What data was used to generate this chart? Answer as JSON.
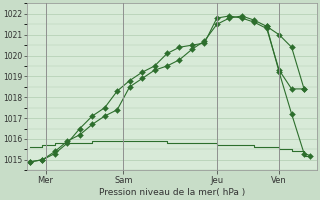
{
  "background_color": "#c8ddc8",
  "plot_bg_color": "#d8ead8",
  "grid_color": "#b0ccb0",
  "line_color": "#2d6e2d",
  "xlabel": "Pression niveau de la mer( hPa )",
  "ylim": [
    1014.5,
    1022.5
  ],
  "yticks": [
    1015,
    1016,
    1017,
    1018,
    1019,
    1020,
    1021,
    1022
  ],
  "xtick_labels": [
    "Mer",
    "Sam",
    "Jeu",
    "Ven"
  ],
  "xtick_positions": [
    0.5,
    3.0,
    6.0,
    8.0
  ],
  "vline_positions": [
    0.5,
    3.0,
    6.0,
    8.0
  ],
  "series1_x": [
    0.0,
    0.4,
    0.8,
    1.2,
    1.6,
    2.0,
    2.4,
    2.8,
    3.2,
    3.6,
    4.0,
    4.4,
    4.8,
    5.2,
    5.6,
    6.0,
    6.4,
    6.8,
    7.2,
    7.6,
    8.0,
    8.4,
    8.8
  ],
  "series1_y": [
    1014.9,
    1015.0,
    1015.3,
    1015.8,
    1016.5,
    1017.1,
    1017.5,
    1018.3,
    1018.8,
    1019.2,
    1019.5,
    1020.1,
    1020.4,
    1020.5,
    1020.6,
    1021.8,
    1021.9,
    1021.8,
    1021.6,
    1021.3,
    1019.3,
    1018.4,
    1018.4
  ],
  "series2_x": [
    0.0,
    0.4,
    0.8,
    1.2,
    1.6,
    2.0,
    2.4,
    2.8,
    3.2,
    3.6,
    4.0,
    4.4,
    4.8,
    5.2,
    5.6,
    6.0,
    6.4,
    6.8,
    7.2,
    7.6,
    8.0,
    8.4,
    8.8
  ],
  "series2_y": [
    1014.9,
    1015.0,
    1015.4,
    1015.9,
    1016.2,
    1016.7,
    1017.1,
    1017.4,
    1018.5,
    1018.9,
    1019.3,
    1019.5,
    1019.8,
    1020.3,
    1020.7,
    1021.5,
    1021.8,
    1021.9,
    1021.7,
    1021.4,
    1021.0,
    1020.4,
    1018.4
  ],
  "series3_x": [
    0.0,
    0.4,
    0.8,
    1.2,
    1.6,
    2.0,
    2.4,
    2.8,
    3.2,
    3.6,
    4.0,
    4.4,
    4.8,
    5.2,
    5.6,
    6.0,
    6.4,
    6.8,
    7.2,
    7.6,
    8.0,
    8.4,
    8.8,
    9.0
  ],
  "series3_y": [
    1015.6,
    1015.7,
    1015.8,
    1015.8,
    1015.8,
    1015.9,
    1015.9,
    1015.9,
    1015.9,
    1015.9,
    1015.9,
    1015.8,
    1015.8,
    1015.8,
    1015.8,
    1015.7,
    1015.7,
    1015.7,
    1015.6,
    1015.6,
    1015.5,
    1015.4,
    1015.2,
    1015.2
  ],
  "series4_x": [
    7.6,
    8.0,
    8.4,
    8.8,
    9.0
  ],
  "series4_y": [
    1021.4,
    1019.2,
    1017.2,
    1015.3,
    1015.2
  ],
  "xlim": [
    -0.1,
    9.2
  ],
  "figsize": [
    3.2,
    2.0
  ],
  "dpi": 100
}
